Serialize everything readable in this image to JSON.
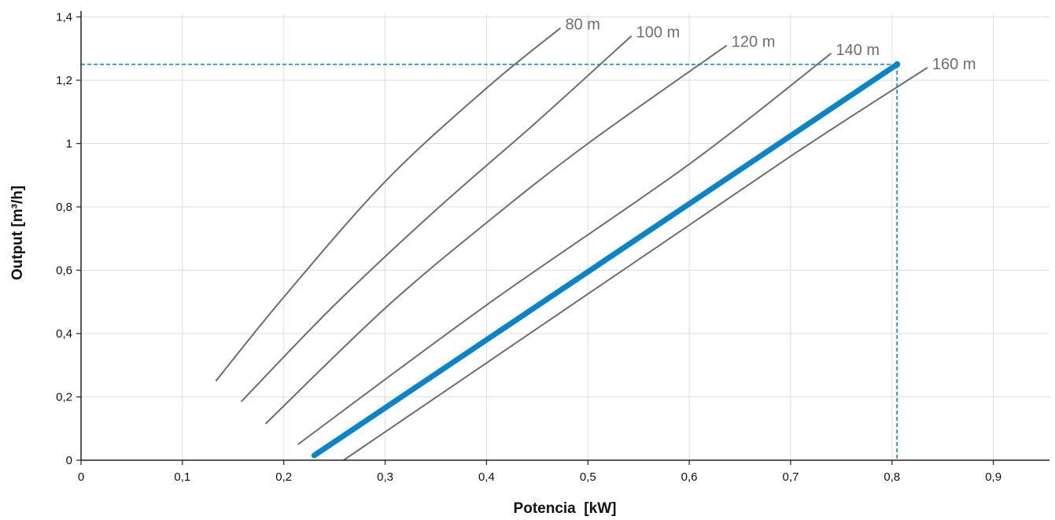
{
  "chart_data": {
    "type": "line",
    "title": "",
    "xlabel": "Potencia  [kW]",
    "ylabel": "Output [m³/h]",
    "xlim": [
      0,
      0.955
    ],
    "ylim": [
      0,
      1.42
    ],
    "xticks": [
      0,
      0.1,
      0.2,
      0.3,
      0.4,
      0.5,
      0.6,
      0.7,
      0.8,
      0.9
    ],
    "xtick_labels": [
      "0",
      "0,1",
      "0,2",
      "0,3",
      "0,4",
      "0,5",
      "0,6",
      "0,7",
      "0,8",
      "0,9"
    ],
    "yticks": [
      0,
      0.2,
      0.4,
      0.6,
      0.8,
      1.0,
      1.2,
      1.4
    ],
    "ytick_labels": [
      "0",
      "0,2",
      "0,4",
      "0,6",
      "0,8",
      "1",
      "1,2",
      "1,4"
    ],
    "grid": true,
    "colors": {
      "curve": "#6e6e6e",
      "highlight": "#0a84c8",
      "grid": "#dddddd",
      "axis": "#222222"
    },
    "series": [
      {
        "name": "80 m",
        "label": "80 m",
        "x": [
          0.133,
          0.2,
          0.3,
          0.4,
          0.473
        ],
        "y": [
          0.25,
          0.515,
          0.88,
          1.175,
          1.365
        ]
      },
      {
        "name": "100 m",
        "label": "100 m",
        "x": [
          0.158,
          0.25,
          0.35,
          0.45,
          0.543
        ],
        "y": [
          0.185,
          0.49,
          0.79,
          1.07,
          1.34
        ]
      },
      {
        "name": "120 m",
        "label": "120 m",
        "x": [
          0.182,
          0.3,
          0.4,
          0.5,
          0.637
        ],
        "y": [
          0.115,
          0.48,
          0.75,
          1.0,
          1.31
        ]
      },
      {
        "name": "140 m",
        "label": "140 m",
        "x": [
          0.214,
          0.4,
          0.6,
          0.74
        ],
        "y": [
          0.05,
          0.49,
          0.935,
          1.285
        ]
      },
      {
        "name": "160 m",
        "label": "160 m",
        "x": [
          0.259,
          0.5,
          0.7,
          0.835
        ],
        "y": [
          0.0,
          0.525,
          0.96,
          1.24
        ]
      }
    ],
    "highlight": {
      "name": "",
      "x": [
        0.23,
        0.805
      ],
      "y": [
        0.015,
        1.25
      ],
      "point": {
        "x": 0.805,
        "y": 1.25
      }
    }
  }
}
